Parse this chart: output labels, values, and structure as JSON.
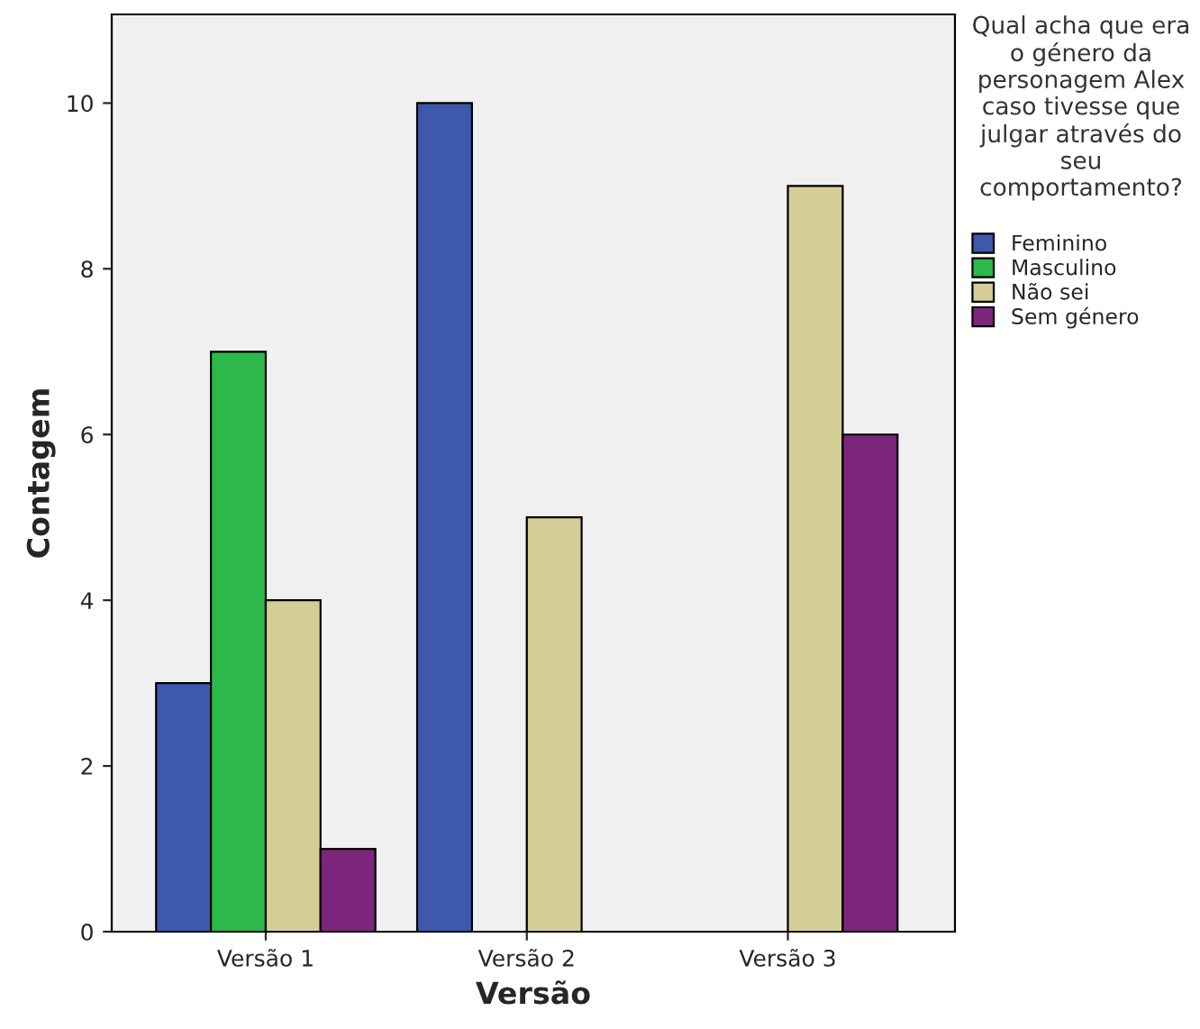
{
  "chart_data": {
    "type": "bar",
    "xlabel": "Versão",
    "ylabel": "Contagem",
    "legend_title": "Qual acha que era o género da personagem Alex caso tivesse que julgar através do seu comportamento?",
    "categories": [
      "Versão 1",
      "Versão 2",
      "Versão 3"
    ],
    "series": [
      {
        "name": "Feminino",
        "color": "#3e58ac",
        "values": [
          3,
          10,
          null
        ]
      },
      {
        "name": "Masculino",
        "color": "#2db84c",
        "values": [
          7,
          null,
          null
        ]
      },
      {
        "name": "Não sei",
        "color": "#d4ce96",
        "values": [
          4,
          5,
          9
        ]
      },
      {
        "name": "Sem género",
        "color": "#7c267b",
        "values": [
          1,
          null,
          6
        ]
      }
    ],
    "ylim": [
      0,
      11.07
    ],
    "yticks": [
      0,
      2,
      4,
      6,
      8,
      10
    ],
    "grid": false,
    "legend": "right"
  }
}
